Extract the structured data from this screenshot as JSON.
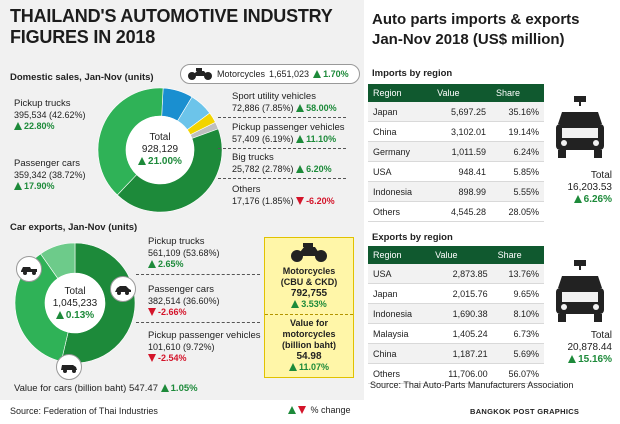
{
  "title_line1": "THAILAND'S AUTOMOTIVE INDUSTRY",
  "title_line2": "FIGURES IN 2018",
  "chart_data": [
    {
      "type": "pie",
      "title": "Domestic sales, Jan-Nov (units)",
      "total_label": "Total",
      "total_value": "928,129",
      "total_change": "21.00%",
      "slices": [
        {
          "name": "Pickup trucks",
          "value": 395534,
          "value_text": "395,534 (42.62%)",
          "change": "22.80%",
          "direction": "up",
          "color": "#1d8a3a"
        },
        {
          "name": "Passenger cars",
          "value": 359342,
          "value_text": "359,342 (38.72%)",
          "change": "17.90%",
          "direction": "up",
          "color": "#2fb257"
        },
        {
          "name": "Sport utility vehicles",
          "value": 72886,
          "value_text": "72,886 (7.85%)",
          "change": "58.00%",
          "direction": "up",
          "color": "#1a8fd0"
        },
        {
          "name": "Pickup passenger vehicles",
          "value": 57409,
          "value_text": "57,409 (6.19%)",
          "change": "11.10%",
          "direction": "up",
          "color": "#6cc4ea"
        },
        {
          "name": "Big trucks",
          "value": 25782,
          "value_text": "25,782 (2.78%)",
          "change": "6.20%",
          "direction": "up",
          "color": "#f2d400"
        },
        {
          "name": "Others",
          "value": 17176,
          "value_text": "17,176 (1.85%)",
          "change": "-6.20%",
          "direction": "down",
          "color": "#bfbfbf"
        }
      ]
    },
    {
      "type": "pie",
      "title": "Car exports, Jan-Nov (units)",
      "total_label": "Total",
      "total_value": "1,045,233",
      "total_change": "0.13%",
      "slices": [
        {
          "name": "Pickup trucks",
          "value": 561109,
          "value_text": "561,109 (53.68%)",
          "change": "2.65%",
          "direction": "up",
          "color": "#1d8a3a"
        },
        {
          "name": "Passenger cars",
          "value": 382514,
          "value_text": "382,514 (36.60%)",
          "change": "-2.66%",
          "direction": "down",
          "color": "#2fb257"
        },
        {
          "name": "Pickup passenger vehicles",
          "value": 101610,
          "value_text": "101,610 (9.72%)",
          "change": "-2.54%",
          "direction": "down",
          "color": "#6dcb8a"
        }
      ]
    },
    {
      "type": "table",
      "title": "Imports by region",
      "columns": [
        "Region",
        "Value",
        "Share"
      ],
      "rows": [
        [
          "Japan",
          "5,697.25",
          "35.16%"
        ],
        [
          "China",
          "3,102.01",
          "19.14%"
        ],
        [
          "Germany",
          "1,011.59",
          "6.24%"
        ],
        [
          "USA",
          "948.41",
          "5.85%"
        ],
        [
          "Indonesia",
          "898.99",
          "5.55%"
        ],
        [
          "Others",
          "4,545.28",
          "28.05%"
        ]
      ],
      "total_label": "Total",
      "total_value": "16,203.53",
      "total_change": "6.26%"
    },
    {
      "type": "table",
      "title": "Exports by region",
      "columns": [
        "Region",
        "Value",
        "Share"
      ],
      "rows": [
        [
          "USA",
          "2,873.85",
          "13.76%"
        ],
        [
          "Japan",
          "2,015.76",
          "9.65%"
        ],
        [
          "Indonesia",
          "1,690.38",
          "8.10%"
        ],
        [
          "Malaysia",
          "1,405.24",
          "6.73%"
        ],
        [
          "China",
          "1,187.21",
          "5.69%"
        ],
        [
          "Others",
          "11,706.00",
          "56.07%"
        ]
      ],
      "total_label": "Total",
      "total_value": "20,878.44",
      "total_change": "15.16%"
    }
  ],
  "motorcycles_domestic": {
    "label": "Motorcycles",
    "value": "1,651,023",
    "change": "1.70%"
  },
  "motorcycles_export": {
    "line1": "Motorcycles",
    "line2": "(CBU & CKD)",
    "value": "792,755",
    "change": "3.53%"
  },
  "moto_value": {
    "line1": "Value for",
    "line2": "motorcycles",
    "line3": "(billion baht)",
    "value": "54.98",
    "change": "11.07%"
  },
  "cars_value": {
    "label": "Value for cars (billion baht)",
    "value": "547.47",
    "change": "1.05%"
  },
  "parts_title_line1": "Auto parts imports & exports",
  "parts_title_line2": "Jan-Nov 2018 (US$ million)",
  "parts_source": "Source: Thai Auto-Parts Manufacturers Association",
  "source": "Source: Federation of Thai Industries",
  "legend_change": "% change",
  "credit": "BANGKOK POST GRAPHICS",
  "colors": {
    "dark_green": "#10592f",
    "up": "#1d8a3a",
    "down": "#d4142a"
  }
}
